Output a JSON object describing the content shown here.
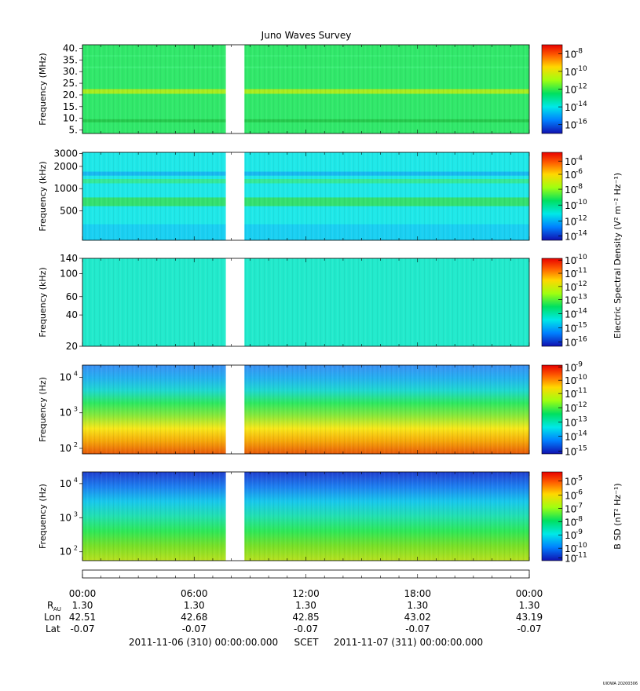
{
  "title": "Juno Waves Survey",
  "footer_stamp": "UIOWA 20200306",
  "colors": {
    "gap": "#ffffff"
  },
  "chart_data": [
    {
      "type": "heatmap",
      "ylabel": "Frequency (MHz)",
      "yscale": "linear",
      "ylim": [
        3.5,
        41.5
      ],
      "yticks": [
        {
          "v": 5,
          "label": "5."
        },
        {
          "v": 10,
          "label": "10."
        },
        {
          "v": 15,
          "label": "15."
        },
        {
          "v": 20,
          "label": "20."
        },
        {
          "v": 25,
          "label": "25."
        },
        {
          "v": 30,
          "label": "30."
        },
        {
          "v": 35,
          "label": "35."
        },
        {
          "v": 40,
          "label": "40."
        }
      ],
      "base_color": "#31e86a",
      "bands": [
        {
          "lo": 20.5,
          "hi": 22.5,
          "color": "#a8ec1f"
        },
        {
          "lo": 8.3,
          "hi": 9.6,
          "color": "#25c84c"
        },
        {
          "lo": 31.5,
          "hi": 32.2,
          "color": "#3ff07a"
        },
        {
          "lo": 36.5,
          "hi": 37.0,
          "color": "#3ff07a"
        }
      ],
      "colorbar": {
        "labels": [
          {
            "e": "-8",
            "f": 0.1
          },
          {
            "e": "-10",
            "f": 0.3
          },
          {
            "e": "-12",
            "f": 0.5
          },
          {
            "e": "-14",
            "f": 0.7
          },
          {
            "e": "-16",
            "f": 0.9
          }
        ],
        "title": ""
      }
    },
    {
      "type": "heatmap",
      "ylabel": "Frequency (kHz)",
      "yscale": "log",
      "ylim": [
        200,
        3100
      ],
      "yticks": [
        {
          "v": 500,
          "label": "500"
        },
        {
          "v": 1000,
          "label": "1000"
        },
        {
          "v": 2000,
          "label": "2000"
        },
        {
          "v": 3000,
          "label": "3000"
        }
      ],
      "base_color": "#1fe8e8",
      "bands": [
        {
          "lo": 580,
          "hi": 760,
          "color": "#34e070"
        },
        {
          "lo": 1180,
          "hi": 1350,
          "color": "#34e89a"
        },
        {
          "lo": 1500,
          "hi": 1700,
          "color": "#18b8f0"
        },
        {
          "lo": 200,
          "hi": 330,
          "color": "#1ad0f2"
        }
      ],
      "colorbar": {
        "labels": [
          {
            "e": "-4",
            "f": 0.1
          },
          {
            "e": "-6",
            "f": 0.25
          },
          {
            "e": "-8",
            "f": 0.42
          },
          {
            "e": "-10",
            "f": 0.6
          },
          {
            "e": "-12",
            "f": 0.78
          },
          {
            "e": "-14",
            "f": 0.95
          }
        ],
        "title": "Electric Spectral Density (V² m⁻² Hz⁻¹)"
      }
    },
    {
      "type": "heatmap",
      "ylabel": "Frequency (kHz)",
      "yscale": "log",
      "ylim": [
        20,
        140
      ],
      "yticks": [
        {
          "v": 20,
          "label": "20"
        },
        {
          "v": 40,
          "label": "40"
        },
        {
          "v": 60,
          "label": "60"
        },
        {
          "v": 100,
          "label": "100"
        },
        {
          "v": 140,
          "label": "140"
        }
      ],
      "base_color": "#22eacc",
      "bands": [],
      "colorbar": {
        "labels": [
          {
            "e": "-10",
            "f": 0.02
          },
          {
            "e": "-11",
            "f": 0.17
          },
          {
            "e": "-12",
            "f": 0.32
          },
          {
            "e": "-13",
            "f": 0.47
          },
          {
            "e": "-14",
            "f": 0.63
          },
          {
            "e": "-15",
            "f": 0.79
          },
          {
            "e": "-16",
            "f": 0.95
          }
        ],
        "title": ""
      }
    },
    {
      "type": "heatmap",
      "ylabel": "Frequency (Hz)",
      "yscale": "log",
      "ylim": [
        70,
        22000
      ],
      "yticks": [
        {
          "v": 100,
          "label": "10",
          "exp": "2"
        },
        {
          "v": 1000,
          "label": "10",
          "exp": "3"
        },
        {
          "v": 10000,
          "label": "10",
          "exp": "4"
        }
      ],
      "gradient": [
        "#e85a08",
        "#f5a80a",
        "#f8e81a",
        "#8ae83a",
        "#2ee860",
        "#1fd8d0",
        "#25b0f0",
        "#3a90f4"
      ],
      "colorbar": {
        "labels": [
          {
            "e": "-9",
            "f": 0.02
          },
          {
            "e": "-10",
            "f": 0.17
          },
          {
            "e": "-11",
            "f": 0.32
          },
          {
            "e": "-12",
            "f": 0.48
          },
          {
            "e": "-13",
            "f": 0.64
          },
          {
            "e": "-14",
            "f": 0.8
          },
          {
            "e": "-15",
            "f": 0.97
          }
        ],
        "title": ""
      }
    },
    {
      "type": "heatmap",
      "ylabel": "Frequency (Hz)",
      "yscale": "log",
      "ylim": [
        55,
        22000
      ],
      "yticks": [
        {
          "v": 100,
          "label": "10",
          "exp": "2"
        },
        {
          "v": 1000,
          "label": "10",
          "exp": "3"
        },
        {
          "v": 10000,
          "label": "10",
          "exp": "4"
        }
      ],
      "gradient": [
        "#b8e020",
        "#78e028",
        "#2ee858",
        "#22e0b0",
        "#18c8ec",
        "#1e80f0",
        "#2040d0"
      ],
      "colorbar": {
        "labels": [
          {
            "e": "-5",
            "f": 0.1
          },
          {
            "e": "-6",
            "f": 0.26
          },
          {
            "e": "-7",
            "f": 0.41
          },
          {
            "e": "-8",
            "f": 0.56
          },
          {
            "e": "-9",
            "f": 0.71
          },
          {
            "e": "-10",
            "f": 0.86
          },
          {
            "e": "-11",
            "f": 0.97
          }
        ],
        "title": "B SD (nT² Hz⁻¹)"
      }
    }
  ],
  "time_axis": {
    "ticks": [
      "00:00",
      "06:00",
      "12:00",
      "18:00",
      "00:00"
    ],
    "row_labels": [
      "R",
      "Lon",
      "Lat"
    ],
    "r_subscript": "AU",
    "r_values": [
      "1.30",
      "1.30",
      "1.30",
      "1.30",
      "1.30"
    ],
    "lon_values": [
      "42.51",
      "42.68",
      "42.85",
      "43.02",
      "43.19"
    ],
    "lat_values": [
      "-0.07",
      "-0.07",
      "-0.07",
      "-0.07",
      "-0.07"
    ],
    "start_label": "2011-11-06 (310) 00:00:00.000",
    "scet_label": "SCET",
    "end_label": "2011-11-07 (311) 00:00:00.000",
    "data_gap_hours": [
      7.7,
      8.7
    ]
  }
}
